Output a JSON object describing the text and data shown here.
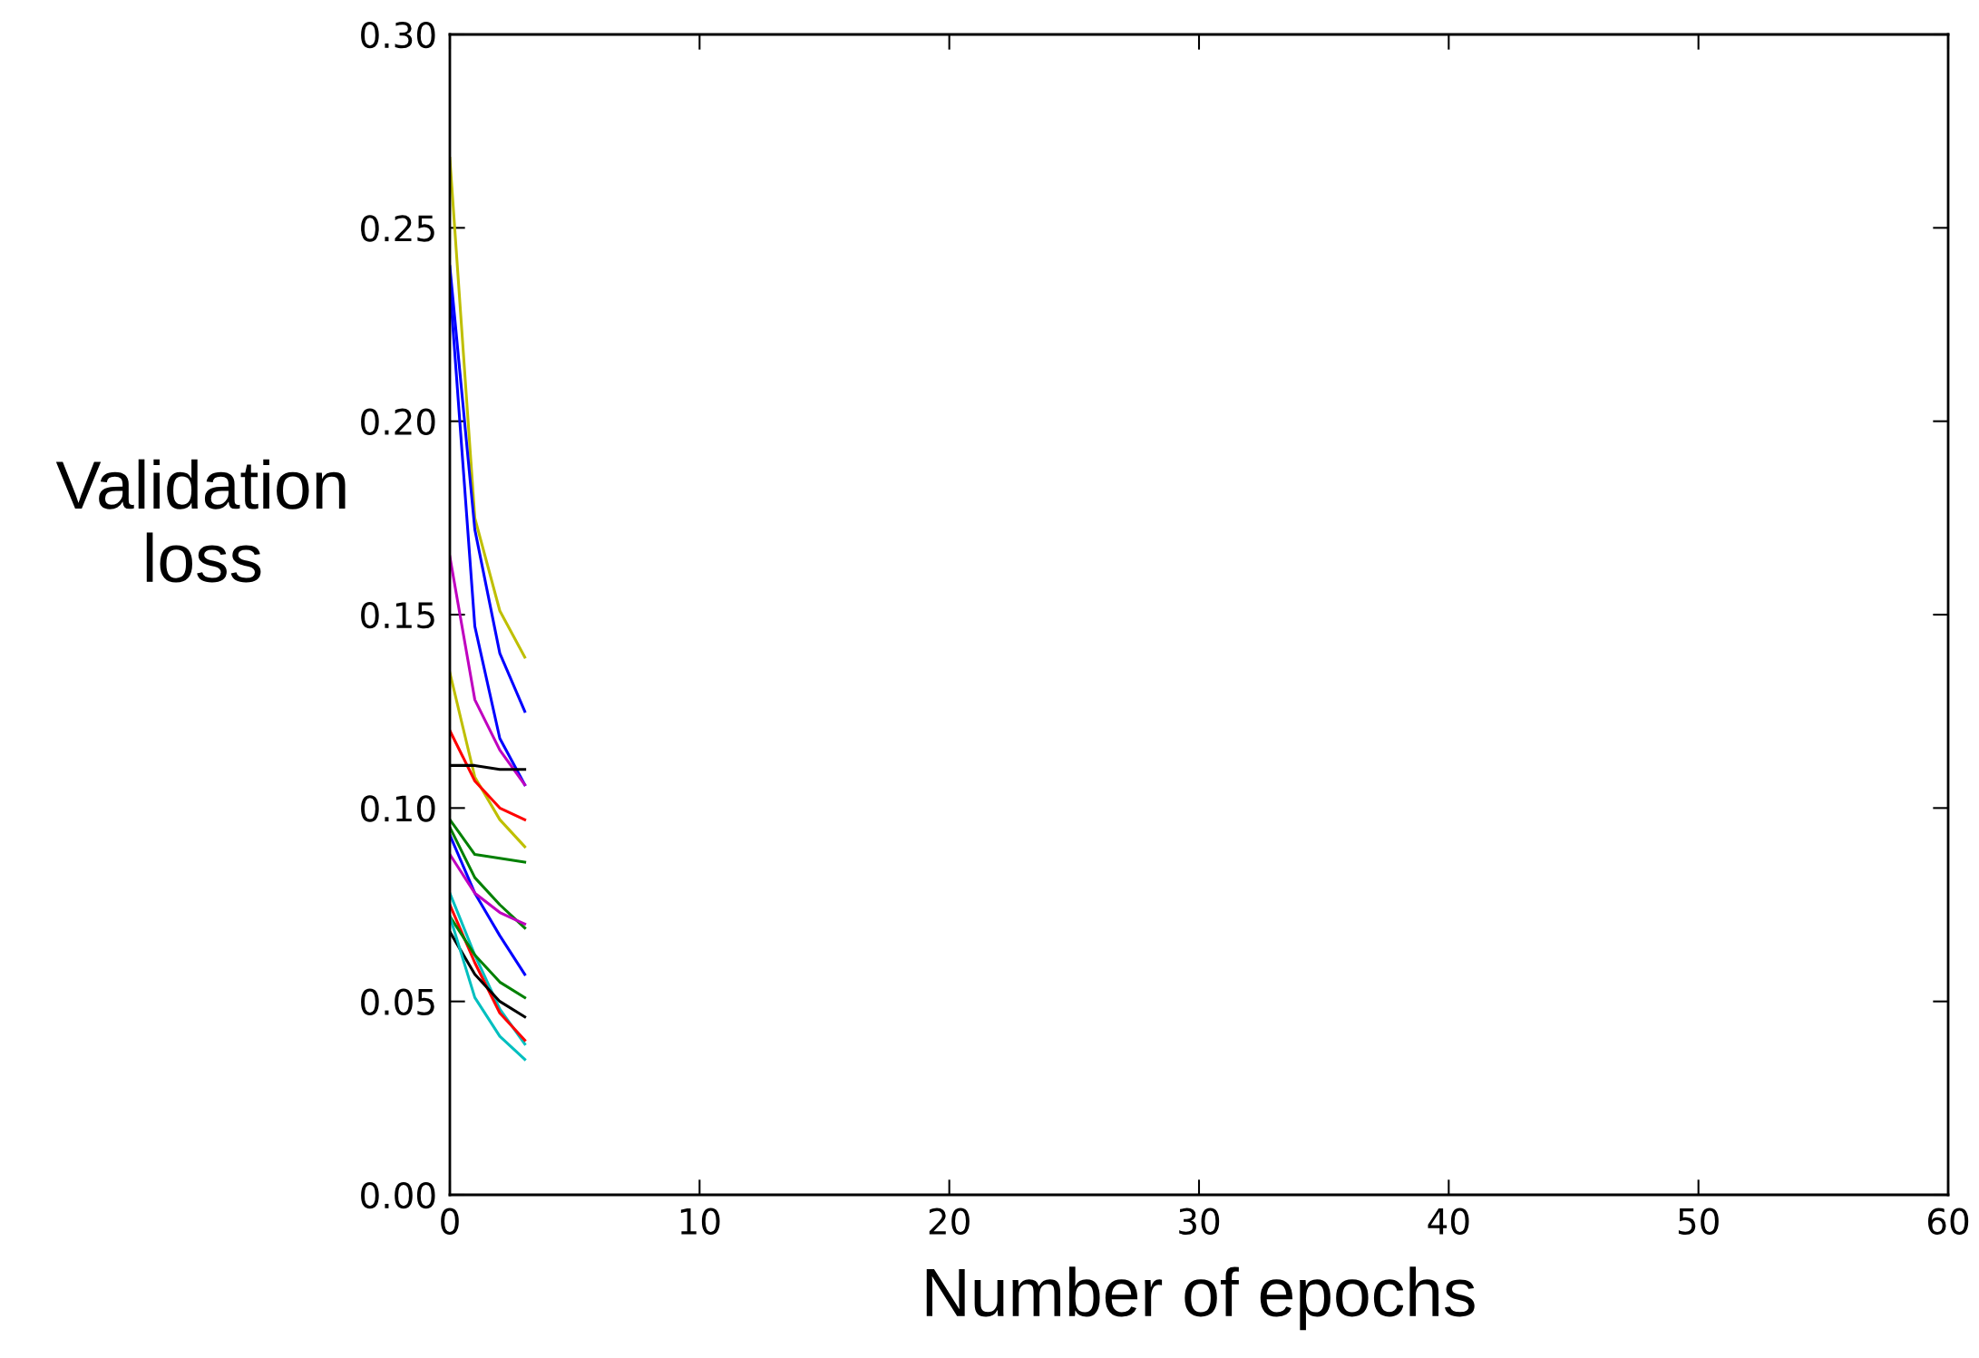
{
  "chart_data": {
    "type": "line",
    "xlabel": "Number of epochs",
    "ylabel": "Validation\nloss",
    "x": [
      0,
      1,
      2,
      3
    ],
    "xlim": [
      0,
      60
    ],
    "xticks": [
      0,
      10,
      20,
      30,
      40,
      50,
      60
    ],
    "ylim": [
      0,
      0.3
    ],
    "yticks": [
      {
        "value": 0,
        "label": "0.00"
      },
      {
        "value": 0.05,
        "label": "0.05"
      },
      {
        "value": 0.1,
        "label": "0.10"
      },
      {
        "value": 0.15,
        "label": "0.15"
      },
      {
        "value": 0.2,
        "label": "0.20"
      },
      {
        "value": 0.25,
        "label": "0.25"
      },
      {
        "value": 0.3,
        "label": "0.30"
      }
    ],
    "grid": false,
    "legend": false,
    "marker": "none",
    "line_style": "solid",
    "series": [
      {
        "color": "#bfbf00",
        "values": [
          0.268,
          0.175,
          0.151,
          0.139
        ]
      },
      {
        "color": "#0000ff",
        "values": [
          0.24,
          0.172,
          0.14,
          0.125
        ]
      },
      {
        "color": "#0000ff",
        "values": [
          0.235,
          0.147,
          0.118,
          0.106
        ]
      },
      {
        "color": "#bf00bf",
        "values": [
          0.165,
          0.128,
          0.115,
          0.106
        ]
      },
      {
        "color": "#bfbf00",
        "values": [
          0.135,
          0.108,
          0.097,
          0.09
        ]
      },
      {
        "color": "#ff0000",
        "values": [
          0.12,
          0.107,
          0.1,
          0.097
        ]
      },
      {
        "color": "#000000",
        "values": [
          0.111,
          0.111,
          0.11,
          0.11
        ]
      },
      {
        "color": "#008000",
        "values": [
          0.097,
          0.088,
          0.087,
          0.086
        ]
      },
      {
        "color": "#008000",
        "values": [
          0.095,
          0.082,
          0.075,
          0.069
        ]
      },
      {
        "color": "#0000ff",
        "values": [
          0.093,
          0.078,
          0.067,
          0.057
        ]
      },
      {
        "color": "#bf00bf",
        "values": [
          0.088,
          0.078,
          0.073,
          0.07
        ]
      },
      {
        "color": "#00bfbf",
        "values": [
          0.078,
          0.062,
          0.048,
          0.039
        ]
      },
      {
        "color": "#ff0000",
        "values": [
          0.075,
          0.06,
          0.047,
          0.04
        ]
      },
      {
        "color": "#008000",
        "values": [
          0.072,
          0.062,
          0.055,
          0.051
        ]
      },
      {
        "color": "#000000",
        "values": [
          0.068,
          0.057,
          0.05,
          0.046
        ]
      },
      {
        "color": "#00bfbf",
        "values": [
          0.072,
          0.051,
          0.041,
          0.035
        ]
      }
    ]
  }
}
